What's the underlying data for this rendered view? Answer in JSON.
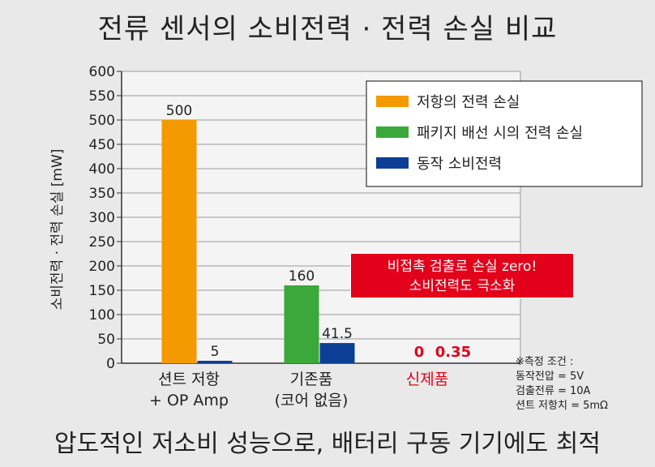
{
  "title": "전류 센서의 소비전력 · 전력 손실 비교",
  "bottom_text": "압도적인 저소비 성능으로, 배터리 구동 기기에도 최적",
  "callout": {
    "line1": "비접촉 검출로 손실 zero!",
    "line2": "소비전력도 극소화"
  },
  "note": {
    "header": "※측정 조건 :",
    "line1": "동작전압 = 5V",
    "line2": "검출전류 = 10A",
    "line3": "션트 저항치 = 5mΩ"
  },
  "colors": {
    "orange": "#f39a00",
    "green": "#3aa83a",
    "blue": "#0c3e96",
    "red": "#e2001a"
  },
  "chart_data": {
    "type": "bar",
    "ylabel": "소비전력 · 전력 손실 [mW]",
    "ylim": [
      0,
      600
    ],
    "yticks": [
      "0",
      "50",
      "100",
      "150",
      "200",
      "250",
      "300",
      "350",
      "400",
      "450",
      "500",
      "550",
      "600"
    ],
    "grid": true,
    "legend_position": "top-right",
    "categories": [
      {
        "line1": "션트 저항",
        "line2": "+ OP Amp",
        "highlight": false
      },
      {
        "line1": "기존품",
        "line2": "(코어 없음)",
        "highlight": false
      },
      {
        "line1": "신제품",
        "line2": "",
        "highlight": true
      }
    ],
    "series": [
      {
        "name": "저항의 전력 손실",
        "color": "#f39a00",
        "values": [
          500,
          null,
          null
        ],
        "labels": [
          "500",
          "",
          ""
        ]
      },
      {
        "name": "패키지 배선 시의 전력 손실",
        "color": "#3aa83a",
        "values": [
          null,
          160,
          0
        ],
        "labels": [
          "",
          "160",
          "0"
        ]
      },
      {
        "name": "동작 소비전력",
        "color": "#0c3e96",
        "values": [
          5,
          41.5,
          0.35
        ],
        "labels": [
          "5",
          "41.5",
          "0.35"
        ]
      }
    ]
  }
}
